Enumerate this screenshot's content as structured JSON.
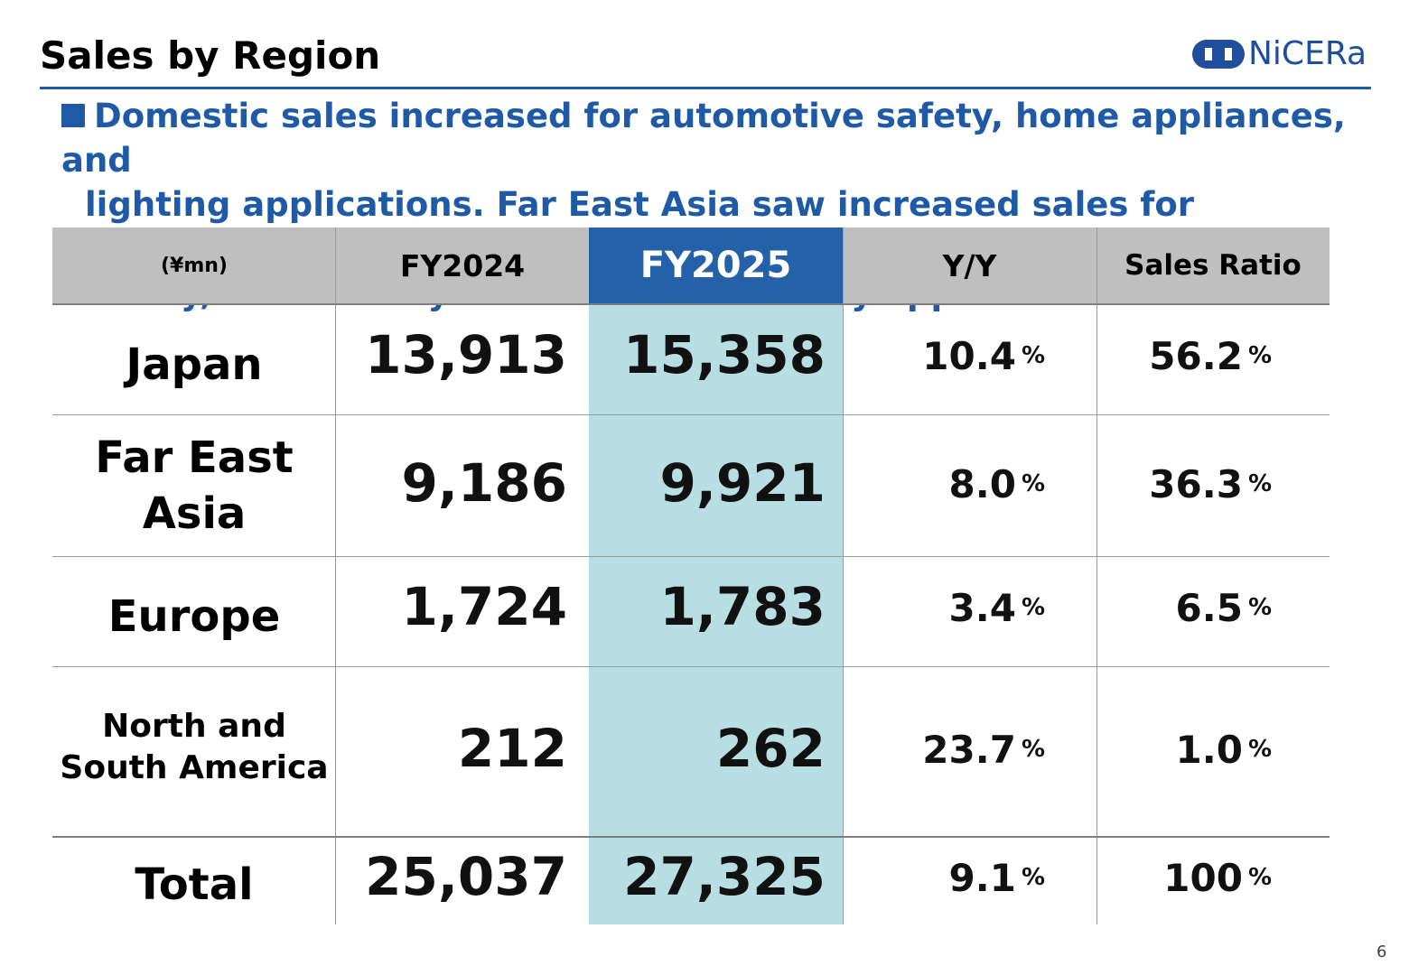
{
  "title": "Sales by Region",
  "logo": {
    "text": "NiCERa"
  },
  "summary": {
    "line1": "Domestic sales increased for automotive safety, home appliances, and",
    "line2": "lighting applications. Far East Asia saw increased sales for automotive",
    "line3": "safety, eco-friendly vehicles, and security applications."
  },
  "colors": {
    "accent": "#1f5aa6",
    "header_gray": "#bfbfbf",
    "highlight_header": "#2461a8",
    "highlight_column": "#b7dfe3"
  },
  "table": {
    "headers": {
      "unit": "(¥mn)",
      "fy2024": "FY2024",
      "fy2025": "FY2025",
      "yy": "Y/Y",
      "ratio": "Sales Ratio"
    },
    "percent_sign": "%",
    "rows": [
      {
        "region": "Japan",
        "fy2024": "13,913",
        "fy2025": "15,358",
        "yy": "10.4",
        "ratio": "56.2"
      },
      {
        "region_line1": "Far East",
        "region_line2": "Asia",
        "fy2024": "9,186",
        "fy2025": "9,921",
        "yy": "8.0",
        "ratio": "36.3"
      },
      {
        "region": "Europe",
        "fy2024": "1,724",
        "fy2025": "1,783",
        "yy": "3.4",
        "ratio": "6.5"
      },
      {
        "region_line1": "North and",
        "region_line2": "South America",
        "fy2024": "212",
        "fy2025": "262",
        "yy": "23.7",
        "ratio": "1.0"
      }
    ],
    "total": {
      "region": "Total",
      "fy2024": "25,037",
      "fy2025": "27,325",
      "yy": "9.1",
      "ratio": "100"
    }
  },
  "page_number": "6"
}
